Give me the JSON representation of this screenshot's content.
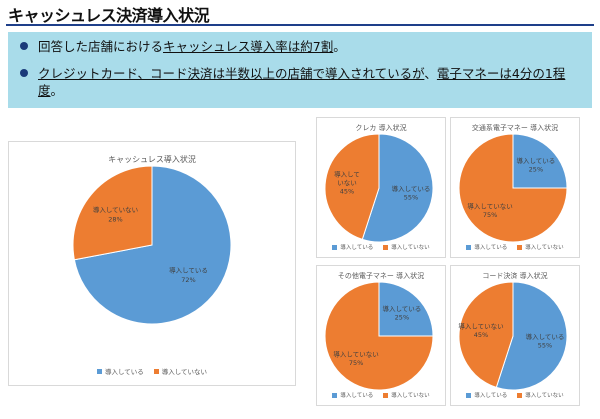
{
  "page": {
    "title": "キャッシュレス決済導入状況",
    "bullets": [
      {
        "segments": [
          {
            "text": "回答した店舗における",
            "u": false
          },
          {
            "text": "キャッシュレス導入率は約7割",
            "u": true
          },
          {
            "text": "。",
            "u": false
          }
        ]
      },
      {
        "segments": [
          {
            "text": "クレジットカード、コード決済は半数以上の店舗で導入されているが",
            "u": true
          },
          {
            "text": "、",
            "u": false
          },
          {
            "text": "電子マネーは4分の1程度",
            "u": true
          },
          {
            "text": "。",
            "u": false
          }
        ]
      }
    ]
  },
  "colors": {
    "introduced": "#5b9bd5",
    "not_introduced": "#ed7d31",
    "box_bg": "#a9dcea",
    "title_rule": "#1e3f8a"
  },
  "legend": [
    "導入している",
    "導入していない"
  ],
  "chart_data": [
    {
      "type": "pie",
      "title": "キャッシュレス導入状況",
      "categories": [
        "導入している",
        "導入していない"
      ],
      "values": [
        72,
        28
      ],
      "labels": [
        [
          "導入している",
          "72%"
        ],
        [
          "導入していない",
          "28%"
        ]
      ],
      "legend_placement": "bottom"
    },
    {
      "type": "pie",
      "title": "クレカ 導入状況",
      "categories": [
        "導入している",
        "導入していない"
      ],
      "values": [
        55,
        45
      ],
      "labels": [
        [
          "導入している",
          "55%"
        ],
        [
          "導入して",
          "いない",
          "45%"
        ]
      ],
      "legend_placement": "bottom"
    },
    {
      "type": "pie",
      "title": "交通系電子マネー 導入状況",
      "categories": [
        "導入している",
        "導入していない"
      ],
      "values": [
        25,
        75
      ],
      "labels": [
        [
          "導入している",
          "25%"
        ],
        [
          "導入していない",
          "75%"
        ]
      ],
      "legend_placement": "bottom"
    },
    {
      "type": "pie",
      "title": "その他電子マネー 導入状況",
      "categories": [
        "導入している",
        "導入していない"
      ],
      "values": [
        25,
        75
      ],
      "labels": [
        [
          "導入している",
          "25%"
        ],
        [
          "導入していない",
          "75%"
        ]
      ],
      "legend_placement": "bottom"
    },
    {
      "type": "pie",
      "title": "コード決済 導入状況",
      "categories": [
        "導入している",
        "導入していない"
      ],
      "values": [
        55,
        45
      ],
      "labels": [
        [
          "導入している",
          "55%"
        ],
        [
          "導入していない",
          "45%"
        ]
      ],
      "legend_placement": "bottom"
    }
  ]
}
